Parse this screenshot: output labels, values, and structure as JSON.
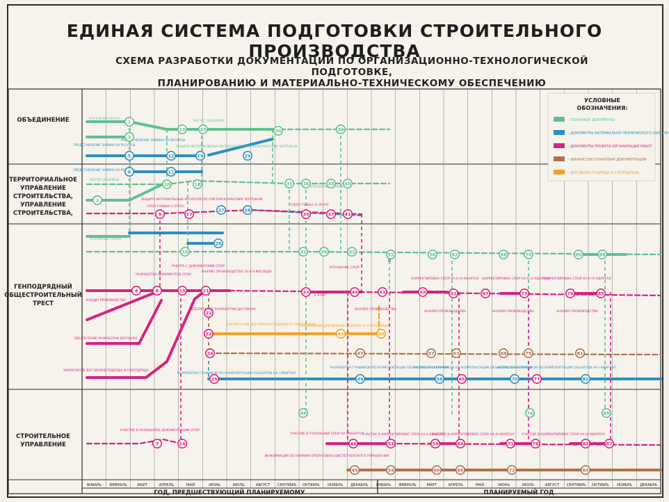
{
  "header": {
    "title": "ЕДИНАЯ СИСТЕМА ПОДГОТОВКИ СТРОИТЕЛЬНОГО ПРОИЗВОДСТВА",
    "subtitle_line1": "СХЕМА РАЗРАБОТКИ ДОКУМЕНТАЦИИ ПО ОРГАНИЗАЦИОННО-ТЕХНОЛОГИЧЕСКОЙ ПОДГОТОВКЕ,",
    "subtitle_line2": "ПЛАНИРОВАНИЮ И МАТЕРИАЛЬНО-ТЕХНИЧЕСКОМУ ОБЕСПЕЧЕНИЮ"
  },
  "rows": [
    {
      "label": "ОБЪЕДИНЕНИЕ"
    },
    {
      "label": "ТЕРРИТОРИАЛЬНОЕ УПРАВЛЕНИЕ СТРОИТЕЛЬСТВА, УПРАВЛЕНИЕ СТРОИТЕЛЬСТВА,"
    },
    {
      "label": "ГЕНПОДРЯДНЫЙ ОБЩЕСТРОИТЕЛЬНЫЙ ТРЕСТ"
    },
    {
      "label": "СТРОИТЕЛЬНОЕ УПРАВЛЕНИЕ"
    }
  ],
  "months": [
    "ЯНВАРЬ",
    "ФЕВРАЛЬ",
    "МАРТ",
    "АПРЕЛЬ",
    "МАЙ",
    "ИЮНЬ",
    "ИЮЛЬ",
    "АВГУСТ",
    "СЕНТЯБРЬ",
    "ОКТЯБРЬ",
    "НОЯБРЬ",
    "ДЕКАБРЬ",
    "ЯНВАРЬ",
    "ФЕВРАЛЬ",
    "МАРТ",
    "АПРЕЛЬ",
    "МАЙ",
    "ИЮНЬ",
    "ИЮЛЬ",
    "АВГУСТ",
    "СЕНТЯБРЬ",
    "ОКТЯБРЬ",
    "НОЯБРЬ",
    "ДЕКАБРЬ"
  ],
  "years": {
    "previous": "ГОД, ПРЕДШЕСТВУЮЩИЙ ПЛАНИРУЕМОМУ",
    "planned": "ПЛАНИРУЕМЫЙ ГОД"
  },
  "legend": {
    "title": "УСЛОВНЫЕ ОБОЗНАЧЕНИЯ:",
    "items": [
      {
        "color": "#5fc08e",
        "text": "– ПЛАНОВЫЕ ДОКУМЕНТЫ"
      },
      {
        "color": "#2b8fbf",
        "text": "– ДОКУМЕНТЫ МАТЕРИАЛЬНО-ТЕХНИЧЕСКОГО ОБЕСПЕЧЕНИЯ И КОМПЛЕКТАЦИИ"
      },
      {
        "color": "#d6237f",
        "text": "– ДОКУМЕНТЫ ПРОЕКТА ОРГАНИЗАЦИИ РАБОТ"
      },
      {
        "color": "#b0704e",
        "text": "– ФИНАНСОВО-ПЛАНОВАЯ ДОКУМЕНТАЦИЯ"
      },
      {
        "color": "#f0a22a",
        "text": "– ДОГОВОРЫ ПОДРЯДА И СУБПОДРЯДА"
      }
    ]
  },
  "notes": {
    "n1": "РАСЧЕТ ОБЪЕМОВ",
    "n2": "ПРЕДСТАВЛЕНИЕ ЗАЯВКИ НА РЕСУРСЫ",
    "n3": "ЗАЩИТА МАТЕРИАЛЬНЫХ РЕСУРСОВ ПО СМЕТАМ И РАБОЧИМ ЧЕРТЕЖАМ",
    "n4": "СПОР ГЛАВКА (I ЭТАП)",
    "n5": "СПОР ГЛАВКА (II ЭТАП)",
    "n6": "РАБОТА С ДОКУМЕНТАМИ СПОР",
    "n7": "АНАЛИЗ ПРОИЗВОДСТВА 10 И 9 МЕСЯЦЕВ",
    "n8": "РАЗРАБОТКА ДОКУМЕНТОВ СПОР",
    "n9": "УТОЧНЕНИЕ СПОР",
    "n10": "КОРРЕКТИРОВКА СПОР НА II–IV КВАРТАЛ",
    "n11": "ОБЕСПЕЧЕНИЕ РАЗРАБОТКИ ДОГОВОРА",
    "n12": "АНАЛИЗ ПРОИЗВОДСТВА",
    "n13": "ЗАКЛЮЧЕНИЕ ДОГОВОРОВ ПОДРЯДА И СУБПОДРЯДА",
    "n14": "РАЗРАБОТКА ГРАФИКОВ ПО КОМПЛЕКТАЦИИ ОБЪЕКТОВ НА I КВАРТАЛ",
    "n15": "УЧАСТИЕ В РАЗРАБОТКЕ ДОКУМЕНТАЦИИ СПОР",
    "n16": "УЧАСТИЕ В УТОЧНЕНИИ СПОР НА I КВАРТАЛ",
    "n17": "УЧАСТИЕ В КОРРЕКТИРОВКЕ СПОР НА II КВАРТАЛ",
    "n18": "УЧАСТИЕ В КОРРЕКТИРОВКЕ СПОР НА III КВАРТАЛ",
    "n19": "УЧАСТИЕ В КОРРЕКТИРОВКЕ СПОР НА IV КВАРТАЛ",
    "n20": "ИНФОРМАЦИЯ ПО НОРМАМ ОПЕРАТИВНО-ДИСПЕТЧЕРСКОГО УПРАВЛЕНИЯ",
    "n21": "II ЭТАП",
    "n22": "УТОЧНЕНИЕ ПЛАНА"
  },
  "nodes": {
    "n1": "1",
    "n2": "2",
    "n3": "3",
    "n4": "4",
    "n5": "5",
    "n6": "6",
    "n7": "7",
    "n8": "8",
    "n9": "9",
    "n10": "10",
    "n11": "11",
    "n12": "12",
    "n13": "13",
    "n14": "14",
    "n15": "15",
    "n16": "16",
    "n17": "17",
    "n18": "18",
    "n19": "19",
    "n20": "20",
    "n21": "21",
    "n22": "22",
    "n23": "23",
    "n24": "24",
    "n25": "25",
    "n26": "26",
    "n27": "27",
    "n28": "28",
    "n29": "29",
    "n30": "30",
    "n31": "31",
    "n32": "32",
    "n33": "33",
    "n34": "34",
    "n35": "35",
    "n36": "36",
    "n37": "37",
    "n38": "38",
    "n39": "39",
    "n40": "40",
    "n41": "41",
    "n42": "42",
    "n43": "43",
    "n44": "44",
    "n45": "45",
    "n46": "46",
    "n47": "47",
    "n48": "48",
    "n49": "49",
    "n50": "50",
    "n51": "51",
    "n52": "52",
    "n53": "53",
    "n54": "54",
    "n55": "55",
    "n56": "56",
    "n57": "57",
    "n58": "58",
    "n59": "59",
    "n60": "60",
    "n61": "61",
    "n62": "62",
    "n63": "63",
    "n64": "64",
    "n65": "65",
    "n66": "66",
    "n67": "67",
    "n68": "68",
    "n69": "69",
    "n70": "70",
    "n71": "71",
    "n72": "72",
    "n73": "73",
    "n74": "74",
    "n75": "75",
    "n76": "76",
    "n77": "77",
    "n78": "78",
    "n79": "79",
    "n80": "80",
    "n81": "81",
    "n82": "82",
    "n83": "83",
    "n84": "84",
    "n85": "85",
    "n86": "86",
    "n87": "87",
    "n88": "88"
  }
}
